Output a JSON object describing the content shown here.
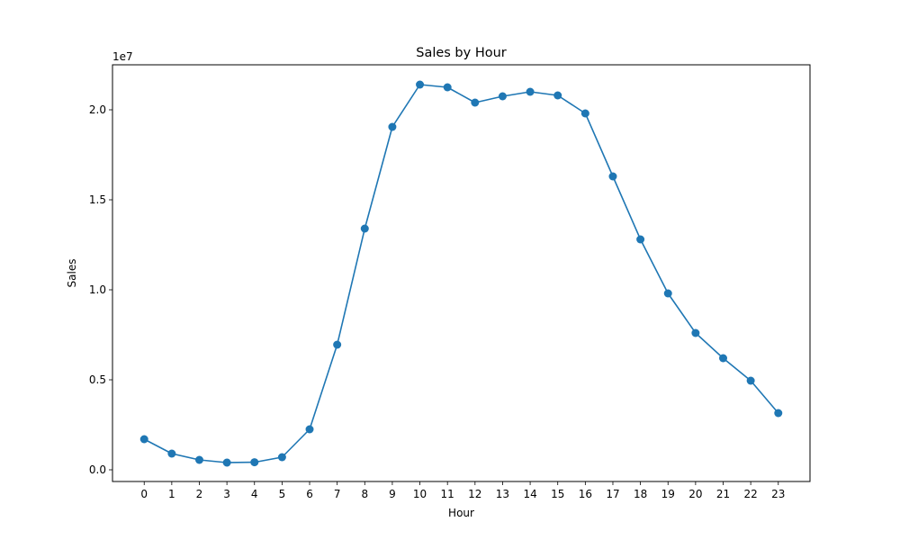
{
  "chart_data": {
    "type": "line",
    "title": "Sales by Hour",
    "xlabel": "Hour",
    "ylabel": "Sales",
    "y_offset_label": "1e7",
    "x": [
      0,
      1,
      2,
      3,
      4,
      5,
      6,
      7,
      8,
      9,
      10,
      11,
      12,
      13,
      14,
      15,
      16,
      17,
      18,
      19,
      20,
      21,
      22,
      23
    ],
    "x_tick_labels": [
      "0",
      "1",
      "2",
      "3",
      "4",
      "5",
      "6",
      "7",
      "8",
      "9",
      "10",
      "11",
      "12",
      "13",
      "14",
      "15",
      "16",
      "17",
      "18",
      "19",
      "20",
      "21",
      "22",
      "23"
    ],
    "series": [
      {
        "values": [
          1700000,
          900000,
          550000,
          400000,
          420000,
          700000,
          2250000,
          6950000,
          13400000,
          19050000,
          21400000,
          21250000,
          20400000,
          20750000,
          21000000,
          20800000,
          19800000,
          16300000,
          12800000,
          9800000,
          7600000,
          6200000,
          4950000,
          3150000
        ],
        "color": "#1f77b4",
        "marker": "circle"
      }
    ],
    "y_ticks": [
      0,
      5000000,
      10000000,
      15000000,
      20000000
    ],
    "y_tick_labels": [
      "0.0",
      "0.5",
      "1.0",
      "1.5",
      "2.0"
    ],
    "ylim": [
      -650000,
      22500000
    ],
    "xlim": [
      -1.15,
      24.15
    ],
    "grid": false,
    "legend": "none"
  }
}
